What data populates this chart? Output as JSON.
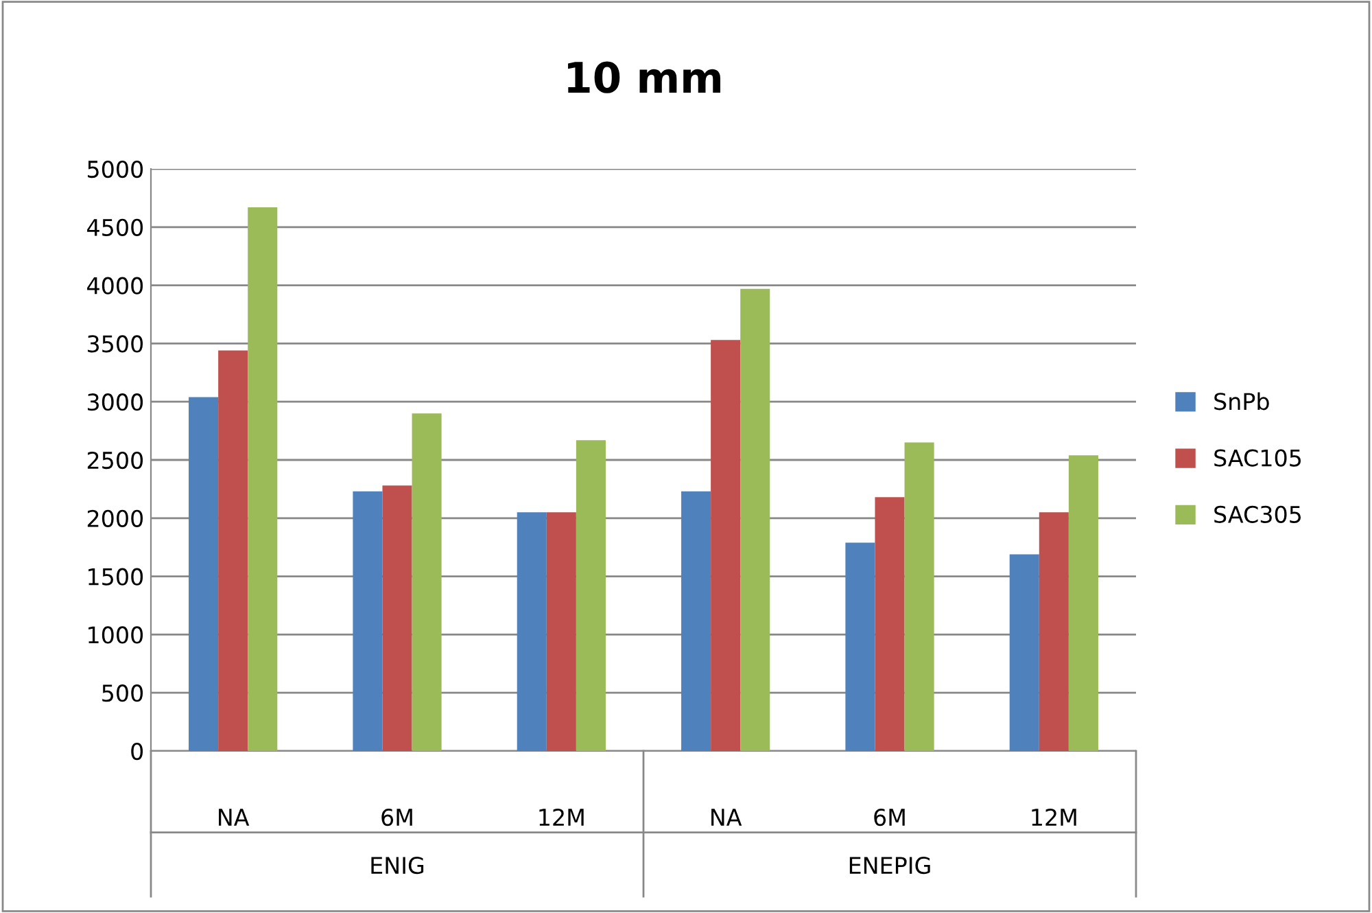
{
  "chart_data": {
    "type": "bar",
    "title": "10 mm",
    "categories": [
      "NA",
      "6M",
      "12M",
      "NA",
      "6M",
      "12M"
    ],
    "series": [
      {
        "name": "SnPb",
        "color": "#4f81bd",
        "values": [
          3040,
          2230,
          2050,
          2230,
          1790,
          1690
        ]
      },
      {
        "name": "SAC105",
        "color": "#c0504d",
        "values": [
          3440,
          2280,
          2050,
          3530,
          2180,
          2050
        ]
      },
      {
        "name": "SAC305",
        "color": "#9bbb59",
        "values": [
          4670,
          2900,
          2670,
          3970,
          2650,
          2540
        ]
      }
    ],
    "annotations": [
      "ENIG",
      "ENEPIG"
    ],
    "ylim": [
      0,
      5000
    ],
    "yticks": [
      0,
      500,
      1000,
      1500,
      2000,
      2500,
      3000,
      3500,
      4000,
      4500,
      5000
    ],
    "grid": "y",
    "legend": "right"
  }
}
